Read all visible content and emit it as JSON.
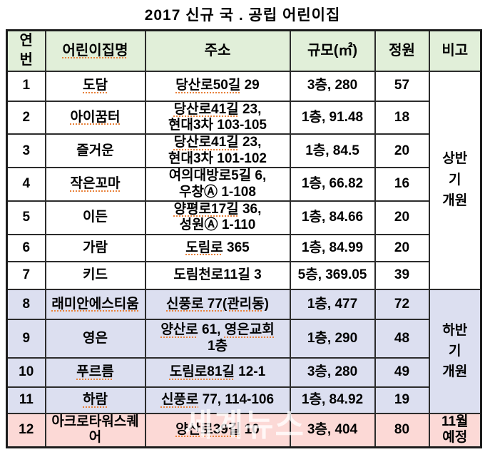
{
  "title": "2017 신규 국 . 공립 어린이집",
  "watermark": "세계뉴스",
  "colors": {
    "header_bg": "#e1efd9",
    "second_half_bg": "#dcdff0",
    "planned_bg": "#fcd9d6",
    "border": "#2c2c2c",
    "squiggle": "#e8813a"
  },
  "table": {
    "headers": {
      "no": "연\n번",
      "name": "어린이집명",
      "name_sq": true,
      "addr": "주소",
      "size": "규모(㎡)",
      "cap": "정원",
      "note": "비고"
    },
    "merged_notes": {
      "first_half": "상반\n기\n개원",
      "second_half": "하반\n기\n개원"
    },
    "rows": [
      {
        "no": "1",
        "name": "도담",
        "name_sq": true,
        "addr": "당산로50길 29",
        "addr_sq": [
          "당산로50길"
        ],
        "size": "3층, 280",
        "cap": "57"
      },
      {
        "no": "2",
        "name": "아이꿈터",
        "name_sq": true,
        "addr": "당산로41길 23,\n현대3차 103-105",
        "addr_sq": [
          "당산로41길"
        ],
        "size": "1층, 91.48",
        "cap": "18"
      },
      {
        "no": "3",
        "name": "즐거운",
        "name_sq": false,
        "addr": "당산로41길 23,\n현대3차 101-102",
        "addr_sq": [
          "당산로41길"
        ],
        "size": "1층, 84.5",
        "cap": "20"
      },
      {
        "no": "4",
        "name": "작은꼬마",
        "name_sq": true,
        "addr": "여의대방로5길 6,\n우창Ⓐ 1-108",
        "addr_sq": [],
        "size": "1층, 66.82",
        "cap": "16"
      },
      {
        "no": "5",
        "name": "이든",
        "name_sq": false,
        "addr": "양평로17길 36,\n성원Ⓐ 1-110",
        "addr_sq": [
          "양평로17길"
        ],
        "size": "1층, 84.66",
        "cap": "20"
      },
      {
        "no": "6",
        "name": "가람",
        "name_sq": false,
        "addr": "도림로 365",
        "addr_sq": [
          "도림로"
        ],
        "size": "1층, 84.99",
        "cap": "20"
      },
      {
        "no": "7",
        "name": "키드",
        "name_sq": false,
        "addr": "도림천로11길 3",
        "addr_sq": [],
        "size": "5층, 369.05",
        "cap": "39"
      },
      {
        "no": "8",
        "name": "래미안에스티움",
        "name_sq": true,
        "addr": "신풍로 77(관리동)",
        "addr_sq": [
          "신풍로 77(관리동)"
        ],
        "size": "1층, 477",
        "cap": "72"
      },
      {
        "no": "9",
        "name": "영은",
        "name_sq": false,
        "addr": "양산로 61, 영은교회\n1층",
        "addr_sq": [
          "양산로",
          "영은교회"
        ],
        "size": "1층, 290",
        "cap": "48"
      },
      {
        "no": "10",
        "name": "푸르름",
        "name_sq": true,
        "addr": "도림로81길 12-1",
        "addr_sq": [
          "도림로81길"
        ],
        "size": "3층, 280",
        "cap": "49"
      },
      {
        "no": "11",
        "name": "하람",
        "name_sq": true,
        "addr": "신풍로 77, 114-106",
        "addr_sq": [
          "신풍로"
        ],
        "size": "1층, 84.92",
        "cap": "19"
      },
      {
        "no": "12",
        "name": "아크로타워스퀘어",
        "name_sq": false,
        "addr": "양산로39길 10",
        "addr_sq": [
          "양산로39길"
        ],
        "size": "3층, 404",
        "cap": "80",
        "note": "11월\n예정"
      }
    ]
  }
}
